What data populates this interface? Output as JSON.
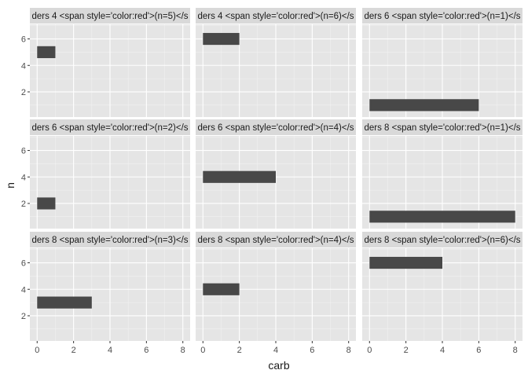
{
  "chart_data": {
    "type": "bar",
    "orientation": "horizontal",
    "xlabel": "carb",
    "ylabel": "n",
    "xlim": [
      -0.4,
      8.4
    ],
    "ylim": [
      0.1,
      7.1
    ],
    "x_ticks": [
      0,
      2,
      4,
      6,
      8
    ],
    "y_ticks": [
      2,
      4,
      6
    ],
    "grid": true,
    "panel_background": "#e5e5e5",
    "strip_background": "#d9d9d9",
    "bar_color": "#484848",
    "panels": [
      {
        "strip": "ders 4 <span style='color:red'>(n=5)</s",
        "bars": [
          {
            "n": 5,
            "carb": 1
          }
        ]
      },
      {
        "strip": "ders 4 <span style='color:red'>(n=6)</s",
        "bars": [
          {
            "n": 6,
            "carb": 2
          }
        ]
      },
      {
        "strip": "ders 6 <span style='color:red'>(n=1)</s",
        "bars": [
          {
            "n": 1,
            "carb": 6
          }
        ]
      },
      {
        "strip": "ders 6 <span style='color:red'>(n=2)</s",
        "bars": [
          {
            "n": 2,
            "carb": 1
          }
        ]
      },
      {
        "strip": "ders 6 <span style='color:red'>(n=4)</s",
        "bars": [
          {
            "n": 4,
            "carb": 4
          }
        ]
      },
      {
        "strip": "ders 8 <span style='color:red'>(n=1)</s",
        "bars": [
          {
            "n": 1,
            "carb": 8
          }
        ]
      },
      {
        "strip": "ders 8 <span style='color:red'>(n=3)</s",
        "bars": [
          {
            "n": 3,
            "carb": 3
          }
        ]
      },
      {
        "strip": "ders 8 <span style='color:red'>(n=4)</s",
        "bars": [
          {
            "n": 4,
            "carb": 2
          }
        ]
      },
      {
        "strip": "ders 8 <span style='color:red'>(n=6)</s",
        "bars": [
          {
            "n": 6,
            "carb": 4
          }
        ]
      }
    ]
  }
}
